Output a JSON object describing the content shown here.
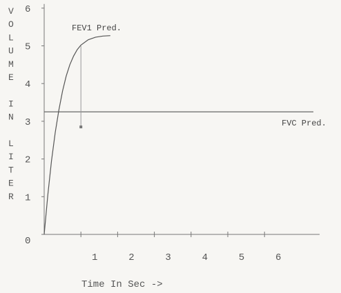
{
  "chart_data": {
    "type": "line",
    "title": "",
    "xlabel": "Time In Sec ->",
    "ylabel": "VOLUME IN LITER",
    "xlim": [
      0,
      7.5
    ],
    "ylim": [
      0,
      6
    ],
    "x_ticks": [
      1,
      2,
      3,
      4,
      5,
      6
    ],
    "y_ticks": [
      0,
      1,
      2,
      3,
      4,
      5,
      6
    ],
    "grid": false,
    "colors": {
      "axis": "#777777",
      "curve": "#555555",
      "fvc": "#666666",
      "marker": "#777777"
    },
    "series": [
      {
        "name": "",
        "x": [
          0,
          0.1,
          0.2,
          0.3,
          0.4,
          0.5,
          0.6,
          0.7,
          0.8,
          0.9,
          1.0,
          1.2,
          1.4,
          1.6,
          1.8
        ],
        "y": [
          0,
          1.05,
          1.95,
          2.7,
          3.3,
          3.8,
          4.2,
          4.5,
          4.73,
          4.9,
          5.02,
          5.16,
          5.23,
          5.26,
          5.27
        ]
      }
    ],
    "annotations": [
      {
        "id": "fev1",
        "text": "FEV1 Pred.",
        "x": 1.0,
        "y_top": 5.0,
        "y_bottom": 2.85
      },
      {
        "id": "fvc",
        "text": "FVC Pred.",
        "y": 3.25
      }
    ]
  }
}
